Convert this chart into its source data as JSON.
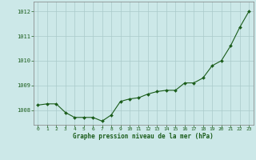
{
  "x": [
    0,
    1,
    2,
    3,
    4,
    5,
    6,
    7,
    8,
    9,
    10,
    11,
    12,
    13,
    14,
    15,
    16,
    17,
    18,
    19,
    20,
    21,
    22,
    23
  ],
  "y": [
    1008.2,
    1008.25,
    1008.25,
    1007.9,
    1007.7,
    1007.7,
    1007.7,
    1007.55,
    1007.8,
    1008.35,
    1008.45,
    1008.5,
    1008.65,
    1008.75,
    1008.8,
    1008.8,
    1009.1,
    1009.1,
    1009.3,
    1009.8,
    1010.0,
    1010.6,
    1011.35,
    1012.0
  ],
  "line_color": "#1a5c1a",
  "marker_color": "#1a5c1a",
  "bg_color": "#cce8e8",
  "grid_color": "#aacaca",
  "text_color": "#1a5c1a",
  "xlabel": "Graphe pression niveau de la mer (hPa)",
  "ylim": [
    1007.4,
    1012.4
  ],
  "yticks": [
    1008,
    1009,
    1010,
    1011,
    1012
  ],
  "xticks": [
    0,
    1,
    2,
    3,
    4,
    5,
    6,
    7,
    8,
    9,
    10,
    11,
    12,
    13,
    14,
    15,
    16,
    17,
    18,
    19,
    20,
    21,
    22,
    23
  ],
  "figsize": [
    3.2,
    2.0
  ],
  "dpi": 100
}
